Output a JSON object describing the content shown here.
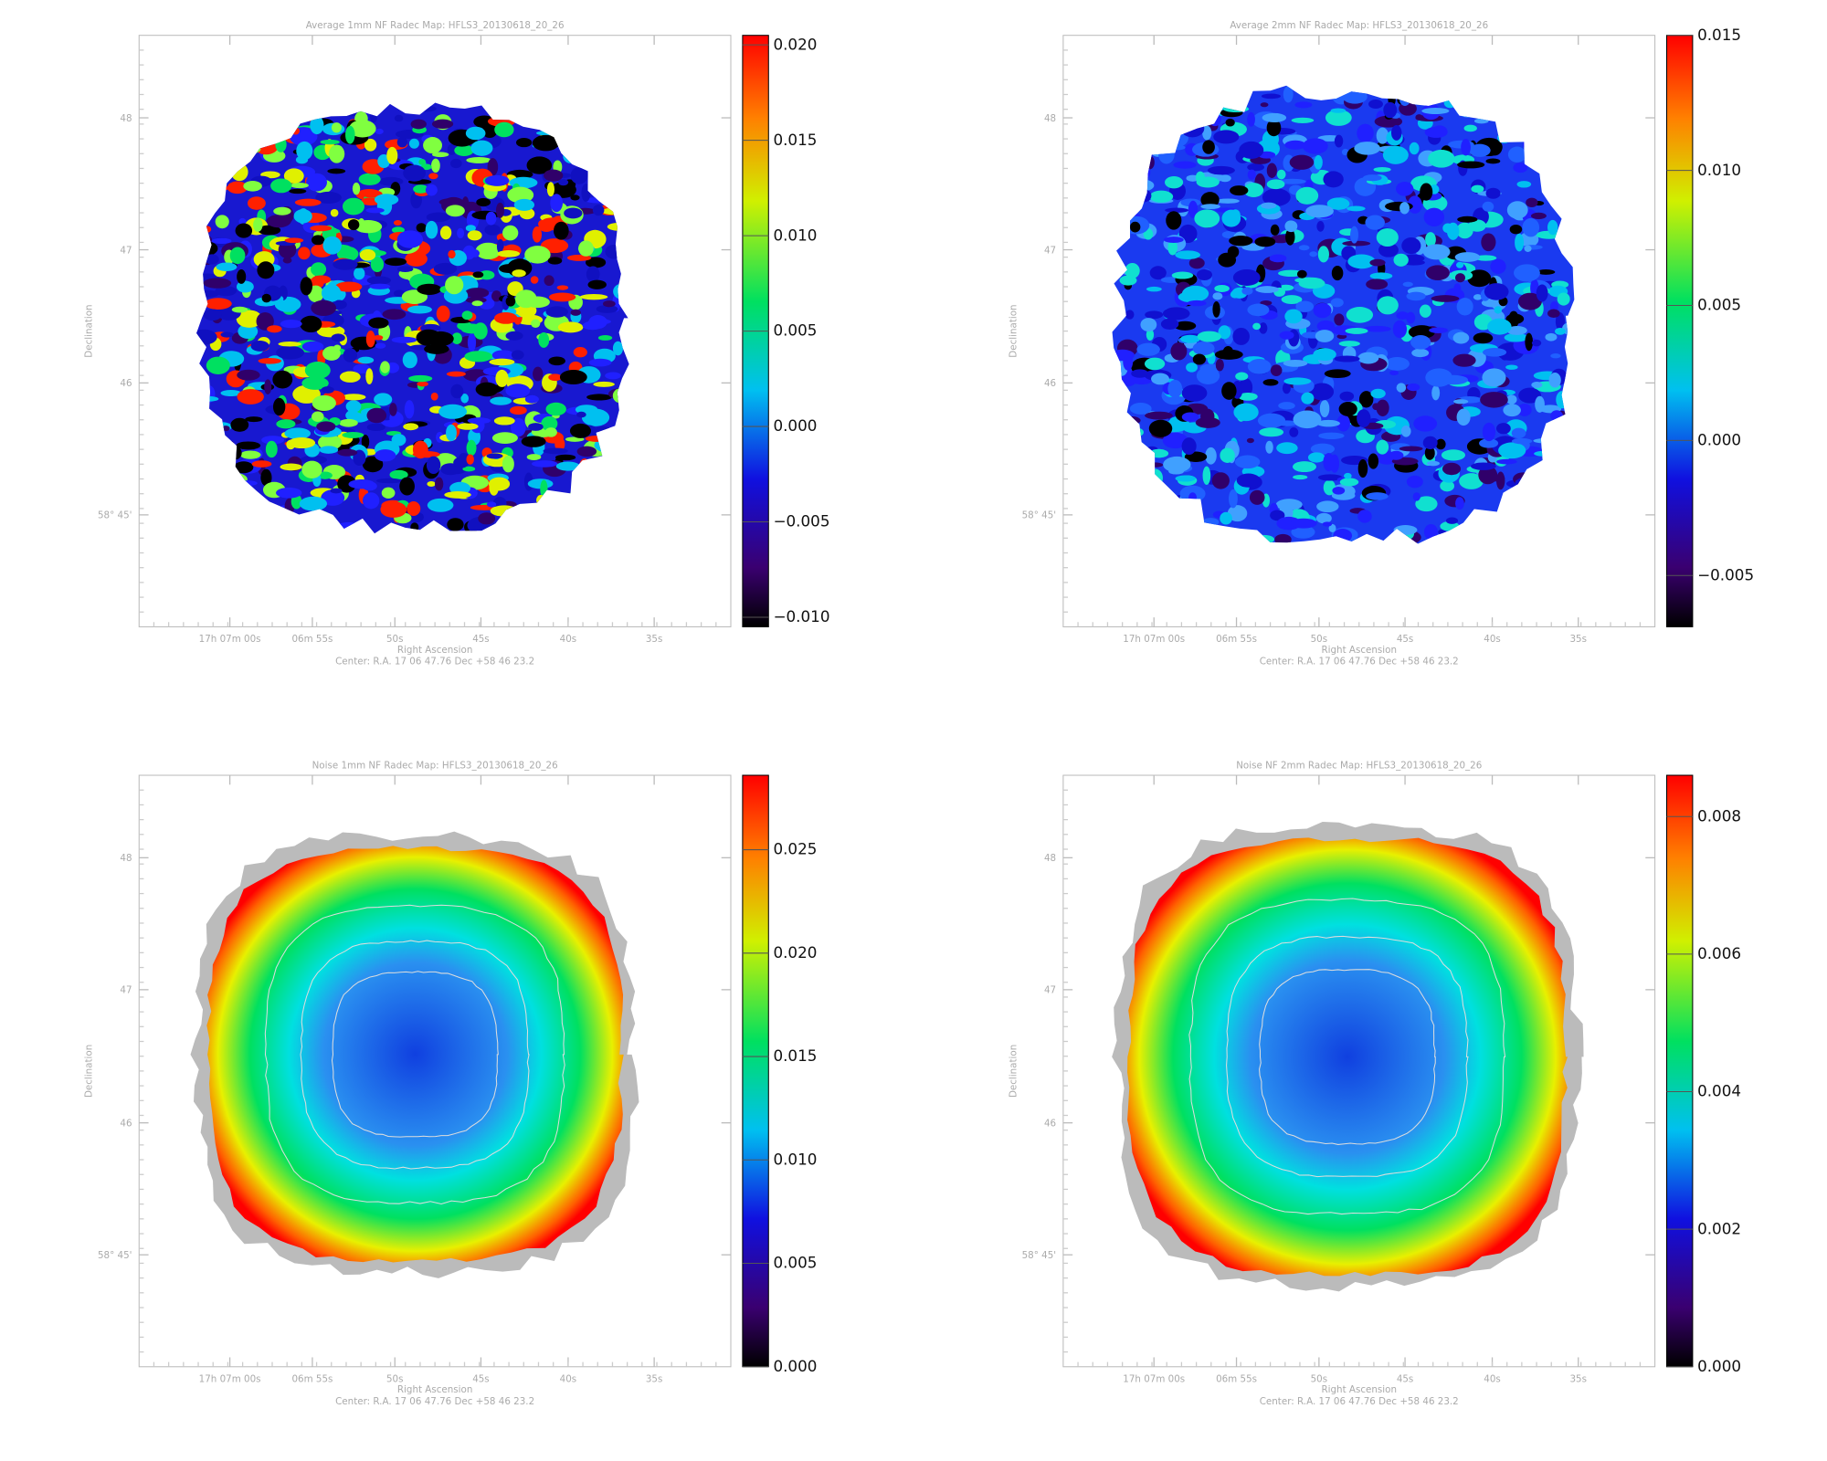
{
  "chart_data": [
    {
      "type": "heatmap",
      "title": "Average 1mm NF Radec Map: HFLS3_20130618_20_26",
      "xlabel": "Right Ascension",
      "ylabel": "Declination",
      "footer": "Center:  R.A. 17 06 47.76    Dec  +58 46 23.2",
      "xtick_labels": [
        "17h 07m 00s",
        "06m 55s",
        "50s",
        "45s",
        "40s",
        "35s"
      ],
      "ytick_labels": [
        "48",
        "47",
        "46",
        "58° 45'"
      ],
      "colorbar_lim": [
        -0.0105,
        0.0205
      ],
      "colorbar_ticks": [
        {
          "value": -0.01,
          "label": "−0.010"
        },
        {
          "value": -0.005,
          "label": "−0.005"
        },
        {
          "value": 0,
          "label": "0.000"
        },
        {
          "value": 0.005,
          "label": "0.005"
        },
        {
          "value": 0.01,
          "label": "0.010"
        },
        {
          "value": 0.015,
          "label": "0.015"
        },
        {
          "value": 0.02,
          "label": "0.020"
        }
      ]
    },
    {
      "type": "heatmap",
      "title": "Average 2mm NF Radec Map: HFLS3_20130618_20_26",
      "xlabel": "Right Ascension",
      "ylabel": "Declination",
      "footer": "Center:  R.A. 17 06 47.76    Dec  +58 46 23.2",
      "xtick_labels": [
        "17h 07m 00s",
        "06m 55s",
        "50s",
        "45s",
        "40s",
        "35s"
      ],
      "ytick_labels": [
        "48",
        "47",
        "46",
        "58° 45'"
      ],
      "colorbar_lim": [
        -0.0069,
        0.015
      ],
      "colorbar_ticks": [
        {
          "value": -0.005,
          "label": "−0.005"
        },
        {
          "value": 0,
          "label": "0.000"
        },
        {
          "value": 0.005,
          "label": "0.005"
        },
        {
          "value": 0.01,
          "label": "0.010"
        },
        {
          "value": 0.015,
          "label": "0.015"
        }
      ]
    },
    {
      "type": "heatmap",
      "title": "Noise 1mm NF Radec Map: HFLS3_20130618_20_26",
      "xlabel": "Right Ascension",
      "ylabel": "Declination",
      "footer": "Center:  R.A. 17 06 47.76    Dec  +58 46 23.2",
      "xtick_labels": [
        "17h 07m 00s",
        "06m 55s",
        "50s",
        "45s",
        "40s",
        "35s"
      ],
      "ytick_labels": [
        "48",
        "47",
        "46",
        "58° 45'"
      ],
      "colorbar_lim": [
        0,
        0.0286
      ],
      "colorbar_ticks": [
        {
          "value": 0,
          "label": "0.000"
        },
        {
          "value": 0.005,
          "label": "0.005"
        },
        {
          "value": 0.01,
          "label": "0.010"
        },
        {
          "value": 0.015,
          "label": "0.015"
        },
        {
          "value": 0.02,
          "label": "0.020"
        },
        {
          "value": 0.025,
          "label": "0.025"
        }
      ]
    },
    {
      "type": "heatmap",
      "title": "Noise NF 2mm Radec Map: HFLS3_20130618_20_26",
      "xlabel": "Right Ascension",
      "ylabel": "Declination",
      "footer": "Center:  R.A. 17 06 47.76    Dec  +58 46 23.2",
      "xtick_labels": [
        "17h 07m 00s",
        "06m 55s",
        "50s",
        "45s",
        "40s",
        "35s"
      ],
      "ytick_labels": [
        "48",
        "47",
        "46",
        "58° 45'"
      ],
      "colorbar_lim": [
        0,
        0.0086
      ],
      "colorbar_ticks": [
        {
          "value": 0,
          "label": "0.000"
        },
        {
          "value": 0.002,
          "label": "0.002"
        },
        {
          "value": 0.004,
          "label": "0.004"
        },
        {
          "value": 0.006,
          "label": "0.006"
        },
        {
          "value": 0.008,
          "label": "0.008"
        }
      ]
    }
  ]
}
